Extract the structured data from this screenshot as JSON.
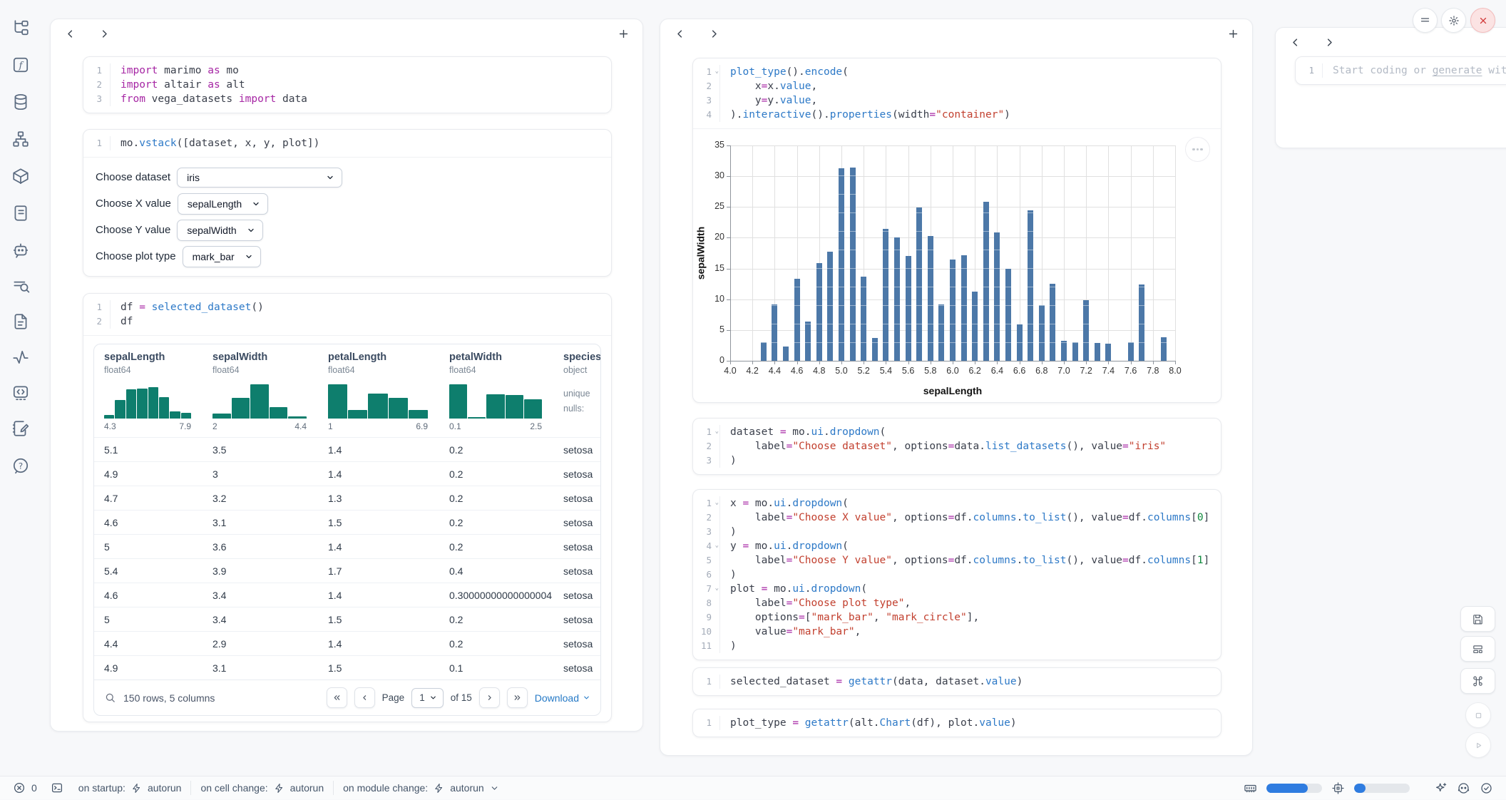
{
  "colors": {
    "accent_blue": "#2579c6",
    "bar_blue": "#4c78a8",
    "hist_teal": "#0e7e6d",
    "progress_blue": "#2f7ce0",
    "close_red": "#d23b3b"
  },
  "sidebar": {
    "icons": [
      "file-tree-icon",
      "function-square-icon",
      "database-icon",
      "workflow-icon",
      "package-icon",
      "scroll-text-icon",
      "bot-chat-icon",
      "list-search-icon",
      "file-text-icon",
      "activity-icon",
      "code-square-icon",
      "notebook-pen-icon",
      "help-circle-icon"
    ]
  },
  "left_panel": {
    "cells": {
      "imports": {
        "lines": [
          {
            "n": "1",
            "t": [
              [
                "k",
                "import"
              ],
              [
                "d",
                " marimo "
              ],
              [
                "k",
                "as"
              ],
              [
                "d",
                " mo"
              ]
            ]
          },
          {
            "n": "2",
            "t": [
              [
                "k",
                "import"
              ],
              [
                "d",
                " altair "
              ],
              [
                "k",
                "as"
              ],
              [
                "d",
                " alt"
              ]
            ]
          },
          {
            "n": "3",
            "t": [
              [
                "k",
                "from"
              ],
              [
                "d",
                " vega_datasets "
              ],
              [
                "k",
                "import"
              ],
              [
                "d",
                " data"
              ]
            ]
          }
        ]
      },
      "vstack": {
        "lines": [
          {
            "n": "1",
            "t": [
              [
                "d",
                "mo."
              ],
              [
                "f",
                "vstack"
              ],
              [
                "d",
                "([dataset, x, y, plot])"
              ]
            ]
          }
        ]
      },
      "df": {
        "lines": [
          {
            "n": "1",
            "t": [
              [
                "d",
                "df "
              ],
              [
                "k",
                "="
              ],
              [
                "d",
                " "
              ],
              [
                "f",
                "selected_dataset"
              ],
              [
                "d",
                "()"
              ]
            ]
          },
          {
            "n": "2",
            "t": [
              [
                "d",
                "df"
              ]
            ]
          }
        ]
      }
    },
    "controls": [
      {
        "label": "Choose dataset",
        "value": "iris"
      },
      {
        "label": "Choose X value",
        "value": "sepalLength"
      },
      {
        "label": "Choose Y value",
        "value": "sepalWidth"
      },
      {
        "label": "Choose plot type",
        "value": "mark_bar"
      }
    ],
    "table": {
      "columns": [
        {
          "name": "sepalLength",
          "dtype": "float64",
          "hist": {
            "min": "4.3",
            "max": "7.9",
            "bars": [
              0.1,
              0.55,
              0.85,
              0.88,
              0.92,
              0.62,
              0.2,
              0.17
            ]
          }
        },
        {
          "name": "sepalWidth",
          "dtype": "float64",
          "hist": {
            "min": "2",
            "max": "4.4",
            "bars": [
              0.15,
              0.6,
              1.0,
              0.33,
              0.06
            ]
          }
        },
        {
          "name": "petalLength",
          "dtype": "float64",
          "hist": {
            "min": "1",
            "max": "6.9",
            "bars": [
              1.0,
              0.25,
              0.72,
              0.6,
              0.25
            ]
          }
        },
        {
          "name": "petalWidth",
          "dtype": "float64",
          "hist": {
            "min": "0.1",
            "max": "2.5",
            "bars": [
              1.0,
              0.05,
              0.7,
              0.68,
              0.57
            ]
          }
        },
        {
          "name": "species",
          "dtype": "object",
          "extra": [
            "unique",
            "nulls:"
          ]
        }
      ],
      "rows": [
        [
          "5.1",
          "3.5",
          "1.4",
          "0.2",
          "setosa"
        ],
        [
          "4.9",
          "3",
          "1.4",
          "0.2",
          "setosa"
        ],
        [
          "4.7",
          "3.2",
          "1.3",
          "0.2",
          "setosa"
        ],
        [
          "4.6",
          "3.1",
          "1.5",
          "0.2",
          "setosa"
        ],
        [
          "5",
          "3.6",
          "1.4",
          "0.2",
          "setosa"
        ],
        [
          "5.4",
          "3.9",
          "1.7",
          "0.4",
          "setosa"
        ],
        [
          "4.6",
          "3.4",
          "1.4",
          "0.30000000000000004",
          "setosa"
        ],
        [
          "5",
          "3.4",
          "1.5",
          "0.2",
          "setosa"
        ],
        [
          "4.4",
          "2.9",
          "1.4",
          "0.2",
          "setosa"
        ],
        [
          "4.9",
          "3.1",
          "1.5",
          "0.1",
          "setosa"
        ]
      ],
      "footer": {
        "summary": "150 rows, 5 columns",
        "page_label": "Page",
        "page_value": "1",
        "of_label": "of 15",
        "download_label": "Download"
      }
    }
  },
  "mid_panel": {
    "cells": {
      "plot_cell": {
        "lines": [
          {
            "n": "1",
            "f": 1,
            "t": [
              [
                "f",
                "plot_type"
              ],
              [
                "d",
                "()."
              ],
              [
                "f",
                "encode"
              ],
              [
                "d",
                "("
              ]
            ]
          },
          {
            "n": "2",
            "t": [
              [
                "d",
                "    x"
              ],
              [
                "k",
                "="
              ],
              [
                "d",
                "x."
              ],
              [
                "f",
                "value"
              ],
              [
                "d",
                ","
              ]
            ]
          },
          {
            "n": "3",
            "t": [
              [
                "d",
                "    y"
              ],
              [
                "k",
                "="
              ],
              [
                "d",
                "y."
              ],
              [
                "f",
                "value"
              ],
              [
                "d",
                ","
              ]
            ]
          },
          {
            "n": "4",
            "t": [
              [
                "d",
                ")."
              ],
              [
                "f",
                "interactive"
              ],
              [
                "d",
                "()."
              ],
              [
                "f",
                "properties"
              ],
              [
                "d",
                "(width"
              ],
              [
                "k",
                "="
              ],
              [
                "s",
                "\"container\""
              ],
              [
                "d",
                ")"
              ]
            ]
          }
        ]
      },
      "dataset_cell": {
        "lines": [
          {
            "n": "1",
            "f": 1,
            "t": [
              [
                "d",
                "dataset "
              ],
              [
                "k",
                "="
              ],
              [
                "d",
                " mo."
              ],
              [
                "f",
                "ui"
              ],
              [
                "d",
                "."
              ],
              [
                "f",
                "dropdown"
              ],
              [
                "d",
                "("
              ]
            ]
          },
          {
            "n": "2",
            "t": [
              [
                "d",
                "    label"
              ],
              [
                "k",
                "="
              ],
              [
                "s",
                "\"Choose dataset\""
              ],
              [
                "d",
                ", options"
              ],
              [
                "k",
                "="
              ],
              [
                "d",
                "data."
              ],
              [
                "f",
                "list_datasets"
              ],
              [
                "d",
                "(), value"
              ],
              [
                "k",
                "="
              ],
              [
                "s",
                "\"iris\""
              ]
            ]
          },
          {
            "n": "3",
            "t": [
              [
                "d",
                ")"
              ]
            ]
          }
        ]
      },
      "xyplot_cell": {
        "lines": [
          {
            "n": "1",
            "f": 1,
            "t": [
              [
                "d",
                "x "
              ],
              [
                "k",
                "="
              ],
              [
                "d",
                " mo."
              ],
              [
                "f",
                "ui"
              ],
              [
                "d",
                "."
              ],
              [
                "f",
                "dropdown"
              ],
              [
                "d",
                "("
              ]
            ]
          },
          {
            "n": "2",
            "t": [
              [
                "d",
                "    label"
              ],
              [
                "k",
                "="
              ],
              [
                "s",
                "\"Choose X value\""
              ],
              [
                "d",
                ", options"
              ],
              [
                "k",
                "="
              ],
              [
                "d",
                "df."
              ],
              [
                "f",
                "columns"
              ],
              [
                "d",
                "."
              ],
              [
                "f",
                "to_list"
              ],
              [
                "d",
                "(), value"
              ],
              [
                "k",
                "="
              ],
              [
                "d",
                "df."
              ],
              [
                "f",
                "columns"
              ],
              [
                "d",
                "["
              ],
              [
                "n",
                "0"
              ],
              [
                "d",
                "]"
              ]
            ]
          },
          {
            "n": "3",
            "t": [
              [
                "d",
                ")"
              ]
            ]
          },
          {
            "n": "4",
            "f": 1,
            "t": [
              [
                "d",
                "y "
              ],
              [
                "k",
                "="
              ],
              [
                "d",
                " mo."
              ],
              [
                "f",
                "ui"
              ],
              [
                "d",
                "."
              ],
              [
                "f",
                "dropdown"
              ],
              [
                "d",
                "("
              ]
            ]
          },
          {
            "n": "5",
            "t": [
              [
                "d",
                "    label"
              ],
              [
                "k",
                "="
              ],
              [
                "s",
                "\"Choose Y value\""
              ],
              [
                "d",
                ", options"
              ],
              [
                "k",
                "="
              ],
              [
                "d",
                "df."
              ],
              [
                "f",
                "columns"
              ],
              [
                "d",
                "."
              ],
              [
                "f",
                "to_list"
              ],
              [
                "d",
                "(), value"
              ],
              [
                "k",
                "="
              ],
              [
                "d",
                "df."
              ],
              [
                "f",
                "columns"
              ],
              [
                "d",
                "["
              ],
              [
                "n",
                "1"
              ],
              [
                "d",
                "]"
              ]
            ]
          },
          {
            "n": "6",
            "t": [
              [
                "d",
                ")"
              ]
            ]
          },
          {
            "n": "7",
            "f": 1,
            "t": [
              [
                "d",
                "plot "
              ],
              [
                "k",
                "="
              ],
              [
                "d",
                " mo."
              ],
              [
                "f",
                "ui"
              ],
              [
                "d",
                "."
              ],
              [
                "f",
                "dropdown"
              ],
              [
                "d",
                "("
              ]
            ]
          },
          {
            "n": "8",
            "t": [
              [
                "d",
                "    label"
              ],
              [
                "k",
                "="
              ],
              [
                "s",
                "\"Choose plot type\""
              ],
              [
                "d",
                ","
              ]
            ]
          },
          {
            "n": "9",
            "t": [
              [
                "d",
                "    options"
              ],
              [
                "k",
                "="
              ],
              [
                "d",
                "["
              ],
              [
                "s",
                "\"mark_bar\""
              ],
              [
                "d",
                ", "
              ],
              [
                "s",
                "\"mark_circle\""
              ],
              [
                "d",
                "],"
              ]
            ]
          },
          {
            "n": "10",
            "t": [
              [
                "d",
                "    value"
              ],
              [
                "k",
                "="
              ],
              [
                "s",
                "\"mark_bar\""
              ],
              [
                "d",
                ","
              ]
            ]
          },
          {
            "n": "11",
            "t": [
              [
                "d",
                ")"
              ]
            ]
          }
        ]
      },
      "selected_cell": {
        "lines": [
          {
            "n": "1",
            "t": [
              [
                "d",
                "selected_dataset "
              ],
              [
                "k",
                "="
              ],
              [
                "d",
                " "
              ],
              [
                "f",
                "getattr"
              ],
              [
                "d",
                "(data, dataset."
              ],
              [
                "f",
                "value"
              ],
              [
                "d",
                ")"
              ]
            ]
          }
        ]
      },
      "plot_type_cell": {
        "lines": [
          {
            "n": "1",
            "t": [
              [
                "d",
                "plot_type "
              ],
              [
                "k",
                "="
              ],
              [
                "d",
                " "
              ],
              [
                "f",
                "getattr"
              ],
              [
                "d",
                "(alt."
              ],
              [
                "f",
                "Chart"
              ],
              [
                "d",
                "(df), plot."
              ],
              [
                "f",
                "value"
              ],
              [
                "d",
                ")"
              ]
            ]
          }
        ]
      }
    }
  },
  "chart_data": {
    "type": "bar",
    "title": "",
    "xlabel": "sepalLength",
    "ylabel": "sepalWidth",
    "x": [
      4.3,
      4.4,
      4.5,
      4.6,
      4.7,
      4.8,
      4.9,
      5.0,
      5.1,
      5.2,
      5.3,
      5.4,
      5.5,
      5.6,
      5.7,
      5.8,
      5.9,
      6.0,
      6.1,
      6.2,
      6.3,
      6.4,
      6.5,
      6.6,
      6.7,
      6.8,
      6.9,
      7.0,
      7.1,
      7.2,
      7.3,
      7.4,
      7.6,
      7.7,
      7.9
    ],
    "values": [
      3.0,
      9.1,
      2.3,
      13.3,
      6.4,
      15.9,
      17.7,
      31.3,
      31.4,
      13.7,
      3.7,
      21.4,
      20.0,
      17.0,
      24.9,
      20.3,
      9.2,
      16.5,
      17.2,
      11.3,
      25.9,
      20.9,
      15.0,
      5.9,
      24.4,
      9.0,
      12.5,
      3.2,
      3.0,
      9.8,
      2.9,
      2.8,
      3.0,
      12.4,
      3.8
    ],
    "xlim": [
      4.0,
      8.0
    ],
    "ylim": [
      0,
      35
    ],
    "x_ticks": [
      "4.0",
      "4.2",
      "4.4",
      "4.6",
      "4.8",
      "5.0",
      "5.2",
      "5.4",
      "5.6",
      "5.8",
      "6.0",
      "6.2",
      "6.4",
      "6.6",
      "6.8",
      "7.0",
      "7.2",
      "7.4",
      "7.6",
      "7.8",
      "8.0"
    ],
    "y_ticks": [
      "0",
      "5",
      "10",
      "15",
      "20",
      "25",
      "30",
      "35"
    ],
    "grid": true,
    "legend": false,
    "bar_color": "#4c78a8"
  },
  "right_panel": {
    "line_number": "1",
    "placeholder": {
      "prefix": "Start coding or ",
      "link": "generate",
      "suffix": " with AI"
    }
  },
  "statusbar": {
    "errors": {
      "count": "0"
    },
    "runtime": [
      {
        "label": "on startup:",
        "mode": "autorun"
      },
      {
        "label": "on cell change:",
        "mode": "autorun"
      },
      {
        "label": "on module change:",
        "mode": "autorun"
      }
    ],
    "resources": {
      "memory_pct": 74,
      "cpu_pct": 21
    }
  }
}
